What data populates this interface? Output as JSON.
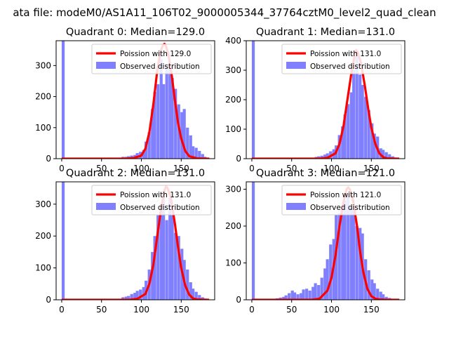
{
  "figure": {
    "suptitle": "ata file: modeM0/AS1A11_106T02_9000005344_37764cztM0_level2_quad_clean"
  },
  "style": {
    "bar_color": "#8080ff",
    "curve_color": "#ff0000",
    "axis_color": "#000000",
    "background": "#ffffff"
  },
  "chart_data": [
    {
      "type": "bar",
      "title": "Quadrant 0: Median=129.0",
      "xlim": [
        -7,
        192
      ],
      "ylim": [
        0,
        380
      ],
      "xticks": [
        "0",
        "50",
        "100",
        "150"
      ],
      "yticks": [
        "0",
        "100",
        "200",
        "300"
      ],
      "legend_position": "top-right",
      "legend": [
        "Poission with 129.0",
        "Observed distribution"
      ],
      "observed": {
        "name": "Observed distribution",
        "bin_width": 3.7,
        "bins": [
          [
            0,
            380
          ],
          [
            75,
            6
          ],
          [
            79,
            6
          ],
          [
            82,
            8
          ],
          [
            86,
            10
          ],
          [
            90,
            12
          ],
          [
            93,
            18
          ],
          [
            97,
            22
          ],
          [
            101,
            28
          ],
          [
            104,
            55
          ],
          [
            108,
            85
          ],
          [
            112,
            160
          ],
          [
            115,
            215
          ],
          [
            119,
            240
          ],
          [
            123,
            320
          ],
          [
            126,
            240
          ],
          [
            130,
            300
          ],
          [
            134,
            300
          ],
          [
            137,
            260
          ],
          [
            141,
            225
          ],
          [
            145,
            175
          ],
          [
            149,
            150
          ],
          [
            152,
            160
          ],
          [
            156,
            100
          ],
          [
            160,
            75
          ],
          [
            163,
            40
          ],
          [
            167,
            35
          ],
          [
            171,
            25
          ],
          [
            175,
            15
          ],
          [
            178,
            6
          ],
          [
            182,
            3
          ]
        ]
      },
      "model": {
        "name": "Poission with 129.0",
        "x": [
          0,
          80,
          90,
          100,
          105,
          110,
          115,
          120,
          124,
          127,
          129,
          131,
          134,
          138,
          142,
          146,
          150,
          155,
          160,
          170,
          180,
          185
        ],
        "y": [
          0,
          0,
          2,
          10,
          32,
          85,
          175,
          285,
          345,
          365,
          370,
          362,
          335,
          270,
          190,
          115,
          65,
          25,
          8,
          1,
          0,
          0
        ]
      }
    },
    {
      "type": "bar",
      "title": "Quadrant 1: Median=131.0",
      "xlim": [
        -7,
        192
      ],
      "ylim": [
        0,
        400
      ],
      "xticks": [
        "0",
        "50",
        "100",
        "150"
      ],
      "yticks": [
        "0",
        "100",
        "200",
        "300",
        "400"
      ],
      "legend_position": "top-right",
      "legend": [
        "Poission with 131.0",
        "Observed distribution"
      ],
      "observed": {
        "name": "Observed distribution",
        "bin_width": 3.7,
        "bins": [
          [
            0,
            400
          ],
          [
            79,
            6
          ],
          [
            82,
            8
          ],
          [
            86,
            10
          ],
          [
            90,
            14
          ],
          [
            93,
            18
          ],
          [
            97,
            25
          ],
          [
            101,
            32
          ],
          [
            104,
            45
          ],
          [
            108,
            80
          ],
          [
            112,
            110
          ],
          [
            115,
            150
          ],
          [
            119,
            185
          ],
          [
            123,
            225
          ],
          [
            126,
            300
          ],
          [
            130,
            350
          ],
          [
            134,
            285
          ],
          [
            137,
            250
          ],
          [
            141,
            210
          ],
          [
            145,
            165
          ],
          [
            149,
            120
          ],
          [
            152,
            85
          ],
          [
            156,
            75
          ],
          [
            160,
            35
          ],
          [
            163,
            30
          ],
          [
            167,
            22
          ],
          [
            171,
            15
          ],
          [
            175,
            8
          ],
          [
            178,
            4
          ]
        ]
      },
      "model": {
        "name": "Poission with 131.0",
        "x": [
          0,
          85,
          95,
          105,
          110,
          115,
          120,
          125,
          129,
          131,
          133,
          137,
          142,
          146,
          150,
          155,
          160,
          165,
          170,
          180,
          185
        ],
        "y": [
          0,
          0,
          3,
          18,
          50,
          110,
          200,
          290,
          350,
          368,
          360,
          325,
          245,
          170,
          105,
          50,
          18,
          5,
          1,
          0,
          0
        ]
      }
    },
    {
      "type": "bar",
      "title": "Quadrant 2: Median=131.0",
      "xlim": [
        -7,
        192
      ],
      "ylim": [
        0,
        370
      ],
      "xticks": [
        "0",
        "50",
        "100",
        "150"
      ],
      "yticks": [
        "0",
        "100",
        "200",
        "300"
      ],
      "legend_position": "top-right",
      "legend": [
        "Poission with 131.0",
        "Observed distribution"
      ],
      "observed": {
        "name": "Observed distribution",
        "bin_width": 3.7,
        "bins": [
          [
            0,
            370
          ],
          [
            75,
            8
          ],
          [
            79,
            10
          ],
          [
            82,
            12
          ],
          [
            86,
            18
          ],
          [
            90,
            22
          ],
          [
            93,
            28
          ],
          [
            97,
            32
          ],
          [
            101,
            40
          ],
          [
            104,
            60
          ],
          [
            108,
            95
          ],
          [
            112,
            150
          ],
          [
            115,
            200
          ],
          [
            119,
            265
          ],
          [
            123,
            300
          ],
          [
            126,
            340
          ],
          [
            130,
            250
          ],
          [
            134,
            320
          ],
          [
            137,
            265
          ],
          [
            141,
            210
          ],
          [
            145,
            200
          ],
          [
            149,
            160
          ],
          [
            152,
            125
          ],
          [
            156,
            95
          ],
          [
            160,
            55
          ],
          [
            163,
            35
          ],
          [
            167,
            25
          ],
          [
            171,
            15
          ],
          [
            175,
            8
          ],
          [
            178,
            4
          ]
        ]
      },
      "model": {
        "name": "Poission with 131.0",
        "x": [
          0,
          85,
          95,
          105,
          110,
          115,
          120,
          125,
          129,
          131,
          133,
          137,
          142,
          146,
          150,
          155,
          160,
          165,
          170,
          180,
          185
        ],
        "y": [
          0,
          0,
          3,
          18,
          50,
          110,
          200,
          290,
          345,
          355,
          350,
          320,
          240,
          165,
          100,
          45,
          16,
          4,
          1,
          0,
          0
        ]
      }
    },
    {
      "type": "bar",
      "title": "Quadrant 3: Median=121.0",
      "xlim": [
        -7,
        192
      ],
      "ylim": [
        0,
        320
      ],
      "xticks": [
        "0",
        "50",
        "100",
        "150"
      ],
      "yticks": [
        "0",
        "100",
        "200",
        "300"
      ],
      "legend_position": "top-right",
      "legend": [
        "Poission with 121.0",
        "Observed distribution"
      ],
      "observed": {
        "name": "Observed distribution",
        "bin_width": 3.7,
        "bins": [
          [
            0,
            320
          ],
          [
            30,
            4
          ],
          [
            34,
            6
          ],
          [
            38,
            8
          ],
          [
            41,
            12
          ],
          [
            45,
            18
          ],
          [
            49,
            25
          ],
          [
            52,
            20
          ],
          [
            56,
            15
          ],
          [
            60,
            18
          ],
          [
            63,
            28
          ],
          [
            67,
            30
          ],
          [
            71,
            25
          ],
          [
            75,
            35
          ],
          [
            78,
            45
          ],
          [
            82,
            40
          ],
          [
            86,
            60
          ],
          [
            90,
            85
          ],
          [
            93,
            110
          ],
          [
            97,
            150
          ],
          [
            101,
            165
          ],
          [
            104,
            230
          ],
          [
            108,
            235
          ],
          [
            112,
            235
          ],
          [
            115,
            270
          ],
          [
            119,
            285
          ],
          [
            123,
            250
          ],
          [
            126,
            245
          ],
          [
            130,
            200
          ],
          [
            134,
            195
          ],
          [
            137,
            180
          ],
          [
            141,
            110
          ],
          [
            145,
            80
          ],
          [
            149,
            55
          ],
          [
            152,
            45
          ],
          [
            156,
            30
          ],
          [
            160,
            22
          ],
          [
            163,
            15
          ],
          [
            167,
            8
          ],
          [
            171,
            5
          ]
        ]
      },
      "model": {
        "name": "Poission with 121.0",
        "x": [
          0,
          75,
          85,
          95,
          100,
          105,
          110,
          115,
          119,
          121,
          123,
          127,
          132,
          136,
          140,
          145,
          150,
          155,
          160,
          170,
          185
        ],
        "y": [
          0,
          0,
          3,
          25,
          60,
          120,
          200,
          265,
          300,
          305,
          300,
          270,
          200,
          130,
          75,
          30,
          10,
          3,
          1,
          0,
          0
        ]
      }
    }
  ]
}
